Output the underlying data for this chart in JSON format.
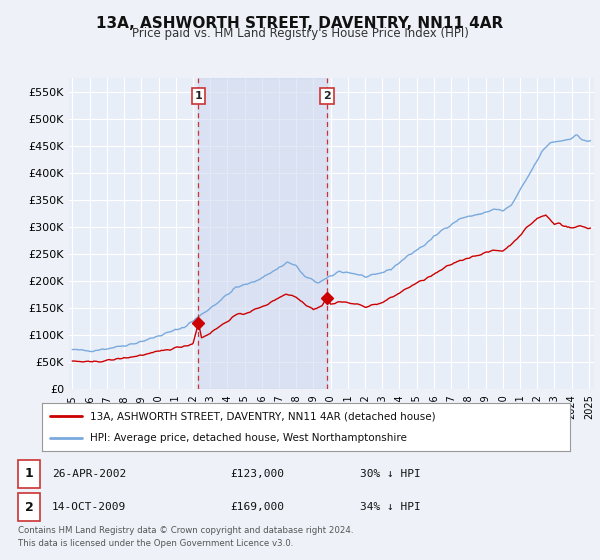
{
  "title": "13A, ASHWORTH STREET, DAVENTRY, NN11 4AR",
  "subtitle": "Price paid vs. HM Land Registry's House Price Index (HPI)",
  "ylabel_ticks": [
    "£0",
    "£50K",
    "£100K",
    "£150K",
    "£200K",
    "£250K",
    "£300K",
    "£350K",
    "£400K",
    "£450K",
    "£500K",
    "£550K"
  ],
  "ytick_values": [
    0,
    50000,
    100000,
    150000,
    200000,
    250000,
    300000,
    350000,
    400000,
    450000,
    500000,
    550000
  ],
  "ylim": [
    0,
    575000
  ],
  "background_color": "#eef2f8",
  "plot_bg_color": "#e8eef8",
  "grid_color": "#ffffff",
  "shade_color": "#cdd8ee",
  "sale1": {
    "date_num": 2002.32,
    "price": 123000,
    "label": "1",
    "date_str": "26-APR-2002",
    "pct": "30% ↓ HPI"
  },
  "sale2": {
    "date_num": 2009.79,
    "price": 169000,
    "label": "2",
    "date_str": "14-OCT-2009",
    "pct": "34% ↓ HPI"
  },
  "legend_line1": "13A, ASHWORTH STREET, DAVENTRY, NN11 4AR (detached house)",
  "legend_line2": "HPI: Average price, detached house, West Northamptonshire",
  "footer": "Contains HM Land Registry data © Crown copyright and database right 2024.\nThis data is licensed under the Open Government Licence v3.0.",
  "hpi_color": "#7aaadd",
  "price_color": "#cc0000",
  "vline_color": "#cc3333",
  "xmin": 1994.8,
  "xmax": 2025.3,
  "xtick_years": [
    1995,
    1996,
    1997,
    1998,
    1999,
    2000,
    2001,
    2002,
    2003,
    2004,
    2005,
    2006,
    2007,
    2008,
    2009,
    2010,
    2011,
    2012,
    2013,
    2014,
    2015,
    2016,
    2017,
    2018,
    2019,
    2020,
    2021,
    2022,
    2023,
    2024,
    2025
  ]
}
